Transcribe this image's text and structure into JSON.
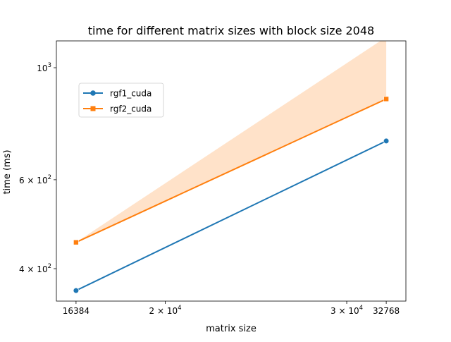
{
  "chart_data": {
    "type": "line",
    "title": "time for different matrix sizes with block size 2048",
    "xlabel": "matrix size",
    "ylabel": "time (ms)",
    "xscale": "log",
    "yscale": "log",
    "xlim": [
      15680,
      34240
    ],
    "ylim": [
      345,
      1130
    ],
    "grid": false,
    "legend_position": "upper-left",
    "x_ticks": [
      {
        "value": 16384,
        "base": "16384",
        "exp": ""
      },
      {
        "value": 20000,
        "base": "2 × 10",
        "exp": "4"
      },
      {
        "value": 30000,
        "base": "3 × 10",
        "exp": "4"
      },
      {
        "value": 32768,
        "base": "32768",
        "exp": ""
      }
    ],
    "y_ticks": [
      {
        "value": 400,
        "base": "4 × 10",
        "exp": "2"
      },
      {
        "value": 600,
        "base": "6 × 10",
        "exp": "2"
      },
      {
        "value": 1000,
        "base": "10",
        "exp": "3"
      }
    ],
    "series": [
      {
        "name": "rgf1_cuda",
        "color": "#1f77b4",
        "marker": "circle",
        "x": [
          16384,
          32768
        ],
        "y": [
          362,
          716
        ]
      },
      {
        "name": "rgf2_cuda",
        "color": "#ff7f0e",
        "marker": "square",
        "x": [
          16384,
          32768
        ],
        "y": [
          451,
          867
        ],
        "band": {
          "color": "#ffe2c9",
          "lower": [
            451,
            867
          ],
          "upper": [
            451,
            1150
          ]
        }
      }
    ]
  }
}
